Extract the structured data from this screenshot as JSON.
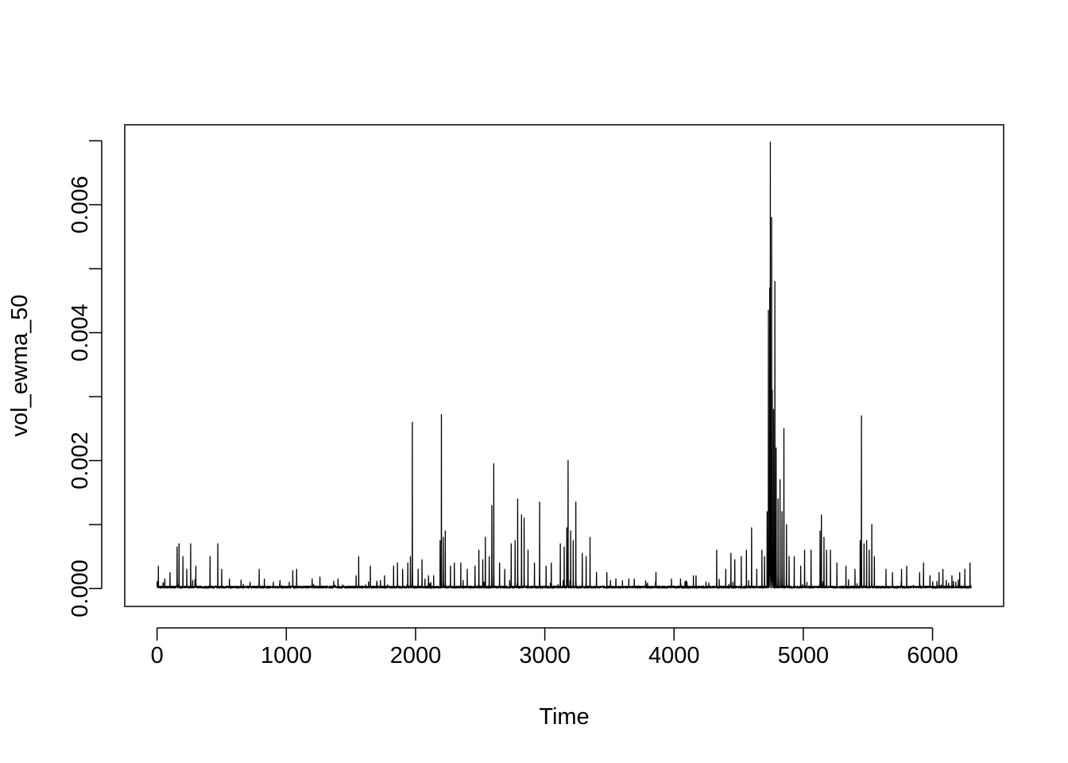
{
  "chart_data": {
    "type": "line",
    "title": "",
    "xlabel": "Time",
    "ylabel": "vol_ewma_50",
    "xlim": [
      -250,
      6550
    ],
    "ylim": [
      -0.00028,
      0.00725
    ],
    "x_ticks": [
      {
        "value": 0,
        "label": "0"
      },
      {
        "value": 1000,
        "label": "1000"
      },
      {
        "value": 2000,
        "label": "2000"
      },
      {
        "value": 3000,
        "label": "3000"
      },
      {
        "value": 4000,
        "label": "4000"
      },
      {
        "value": 5000,
        "label": "5000"
      },
      {
        "value": 6000,
        "label": "6000"
      }
    ],
    "y_ticks": [
      {
        "value": 0.0,
        "label": "0.000"
      },
      {
        "value": 0.001,
        "label": ""
      },
      {
        "value": 0.002,
        "label": "0.002"
      },
      {
        "value": 0.003,
        "label": ""
      },
      {
        "value": 0.004,
        "label": "0.004"
      },
      {
        "value": 0.005,
        "label": ""
      },
      {
        "value": 0.006,
        "label": "0.006"
      },
      {
        "value": 0.007,
        "label": ""
      }
    ],
    "grid": false,
    "legend": "none",
    "line_color": "#000000",
    "n_points": 6300,
    "baseline_level": 2e-05,
    "spikes": [
      [
        10,
        0.00035
      ],
      [
        60,
        0.00015
      ],
      [
        100,
        0.00025
      ],
      [
        155,
        0.00065
      ],
      [
        170,
        0.0007
      ],
      [
        200,
        0.0005
      ],
      [
        230,
        0.0003
      ],
      [
        260,
        0.0007
      ],
      [
        300,
        0.00035
      ],
      [
        410,
        0.0005
      ],
      [
        470,
        0.0007
      ],
      [
        500,
        0.0003
      ],
      [
        560,
        0.00015
      ],
      [
        650,
        0.0001
      ],
      [
        720,
        0.0001
      ],
      [
        790,
        0.0003
      ],
      [
        830,
        0.00015
      ],
      [
        900,
        0.0001
      ],
      [
        1050,
        0.00028
      ],
      [
        1080,
        0.0003
      ],
      [
        1200,
        0.00015
      ],
      [
        1260,
        0.00018
      ],
      [
        1400,
        0.00015
      ],
      [
        1540,
        0.0002
      ],
      [
        1560,
        0.0005
      ],
      [
        1650,
        0.00035
      ],
      [
        1760,
        0.0002
      ],
      [
        1830,
        0.00035
      ],
      [
        1860,
        0.0004
      ],
      [
        1900,
        0.0003
      ],
      [
        1940,
        0.0004
      ],
      [
        1960,
        0.0005
      ],
      [
        1975,
        0.0026
      ],
      [
        2020,
        0.0003
      ],
      [
        2050,
        0.00045
      ],
      [
        2100,
        0.0002
      ],
      [
        2140,
        0.0002
      ],
      [
        2190,
        0.00075
      ],
      [
        2200,
        0.00272
      ],
      [
        2215,
        0.0008
      ],
      [
        2230,
        0.0009
      ],
      [
        2270,
        0.00035
      ],
      [
        2300,
        0.0004
      ],
      [
        2350,
        0.0004
      ],
      [
        2400,
        0.0003
      ],
      [
        2460,
        0.00035
      ],
      [
        2490,
        0.0006
      ],
      [
        2520,
        0.00045
      ],
      [
        2540,
        0.0008
      ],
      [
        2570,
        0.0005
      ],
      [
        2590,
        0.0013
      ],
      [
        2605,
        0.00195
      ],
      [
        2650,
        0.0004
      ],
      [
        2690,
        0.0003
      ],
      [
        2740,
        0.0007
      ],
      [
        2770,
        0.00075
      ],
      [
        2790,
        0.0014
      ],
      [
        2820,
        0.00115
      ],
      [
        2840,
        0.0011
      ],
      [
        2870,
        0.0006
      ],
      [
        2920,
        0.0004
      ],
      [
        2960,
        0.00135
      ],
      [
        3010,
        0.00035
      ],
      [
        3050,
        0.0004
      ],
      [
        3120,
        0.0007
      ],
      [
        3150,
        0.00065
      ],
      [
        3170,
        0.00095
      ],
      [
        3180,
        0.002
      ],
      [
        3200,
        0.0009
      ],
      [
        3220,
        0.00075
      ],
      [
        3240,
        0.00135
      ],
      [
        3290,
        0.00055
      ],
      [
        3320,
        0.0005
      ],
      [
        3350,
        0.0008
      ],
      [
        3400,
        0.00025
      ],
      [
        3480,
        0.00025
      ],
      [
        3550,
        0.00015
      ],
      [
        3650,
        0.00015
      ],
      [
        3780,
        0.00012
      ],
      [
        3860,
        0.00025
      ],
      [
        3980,
        0.00015
      ],
      [
        4050,
        0.00015
      ],
      [
        4150,
        0.0002
      ],
      [
        4170,
        0.0002
      ],
      [
        4330,
        0.0006
      ],
      [
        4400,
        0.0003
      ],
      [
        4440,
        0.00055
      ],
      [
        4470,
        0.00045
      ],
      [
        4520,
        0.0005
      ],
      [
        4560,
        0.0006
      ],
      [
        4600,
        0.00095
      ],
      [
        4640,
        0.0003
      ],
      [
        4680,
        0.0006
      ],
      [
        4700,
        0.0005
      ],
      [
        4720,
        0.0012
      ],
      [
        4730,
        0.00435
      ],
      [
        4740,
        0.0047
      ],
      [
        4745,
        0.00698
      ],
      [
        4755,
        0.0058
      ],
      [
        4760,
        0.0031
      ],
      [
        4770,
        0.0028
      ],
      [
        4780,
        0.0048
      ],
      [
        4790,
        0.0022
      ],
      [
        4805,
        0.0014
      ],
      [
        4820,
        0.0017
      ],
      [
        4835,
        0.0012
      ],
      [
        4850,
        0.0025
      ],
      [
        4870,
        0.001
      ],
      [
        4890,
        0.0005
      ],
      [
        4930,
        0.0005
      ],
      [
        4980,
        0.00035
      ],
      [
        5010,
        0.0006
      ],
      [
        5060,
        0.0006
      ],
      [
        5130,
        0.0009
      ],
      [
        5140,
        0.00115
      ],
      [
        5160,
        0.0008
      ],
      [
        5180,
        0.0006
      ],
      [
        5210,
        0.0006
      ],
      [
        5260,
        0.0004
      ],
      [
        5330,
        0.00035
      ],
      [
        5400,
        0.0003
      ],
      [
        5440,
        0.00075
      ],
      [
        5450,
        0.0027
      ],
      [
        5470,
        0.0007
      ],
      [
        5490,
        0.00075
      ],
      [
        5510,
        0.0006
      ],
      [
        5530,
        0.001
      ],
      [
        5550,
        0.0005
      ],
      [
        5640,
        0.0003
      ],
      [
        5690,
        0.00025
      ],
      [
        5760,
        0.0003
      ],
      [
        5800,
        0.00035
      ],
      [
        5900,
        0.00025
      ],
      [
        5930,
        0.0004
      ],
      [
        5980,
        0.0002
      ],
      [
        6050,
        0.00025
      ],
      [
        6080,
        0.0003
      ],
      [
        6150,
        0.0002
      ],
      [
        6210,
        0.00025
      ],
      [
        6250,
        0.0003
      ],
      [
        6290,
        0.0004
      ]
    ]
  }
}
